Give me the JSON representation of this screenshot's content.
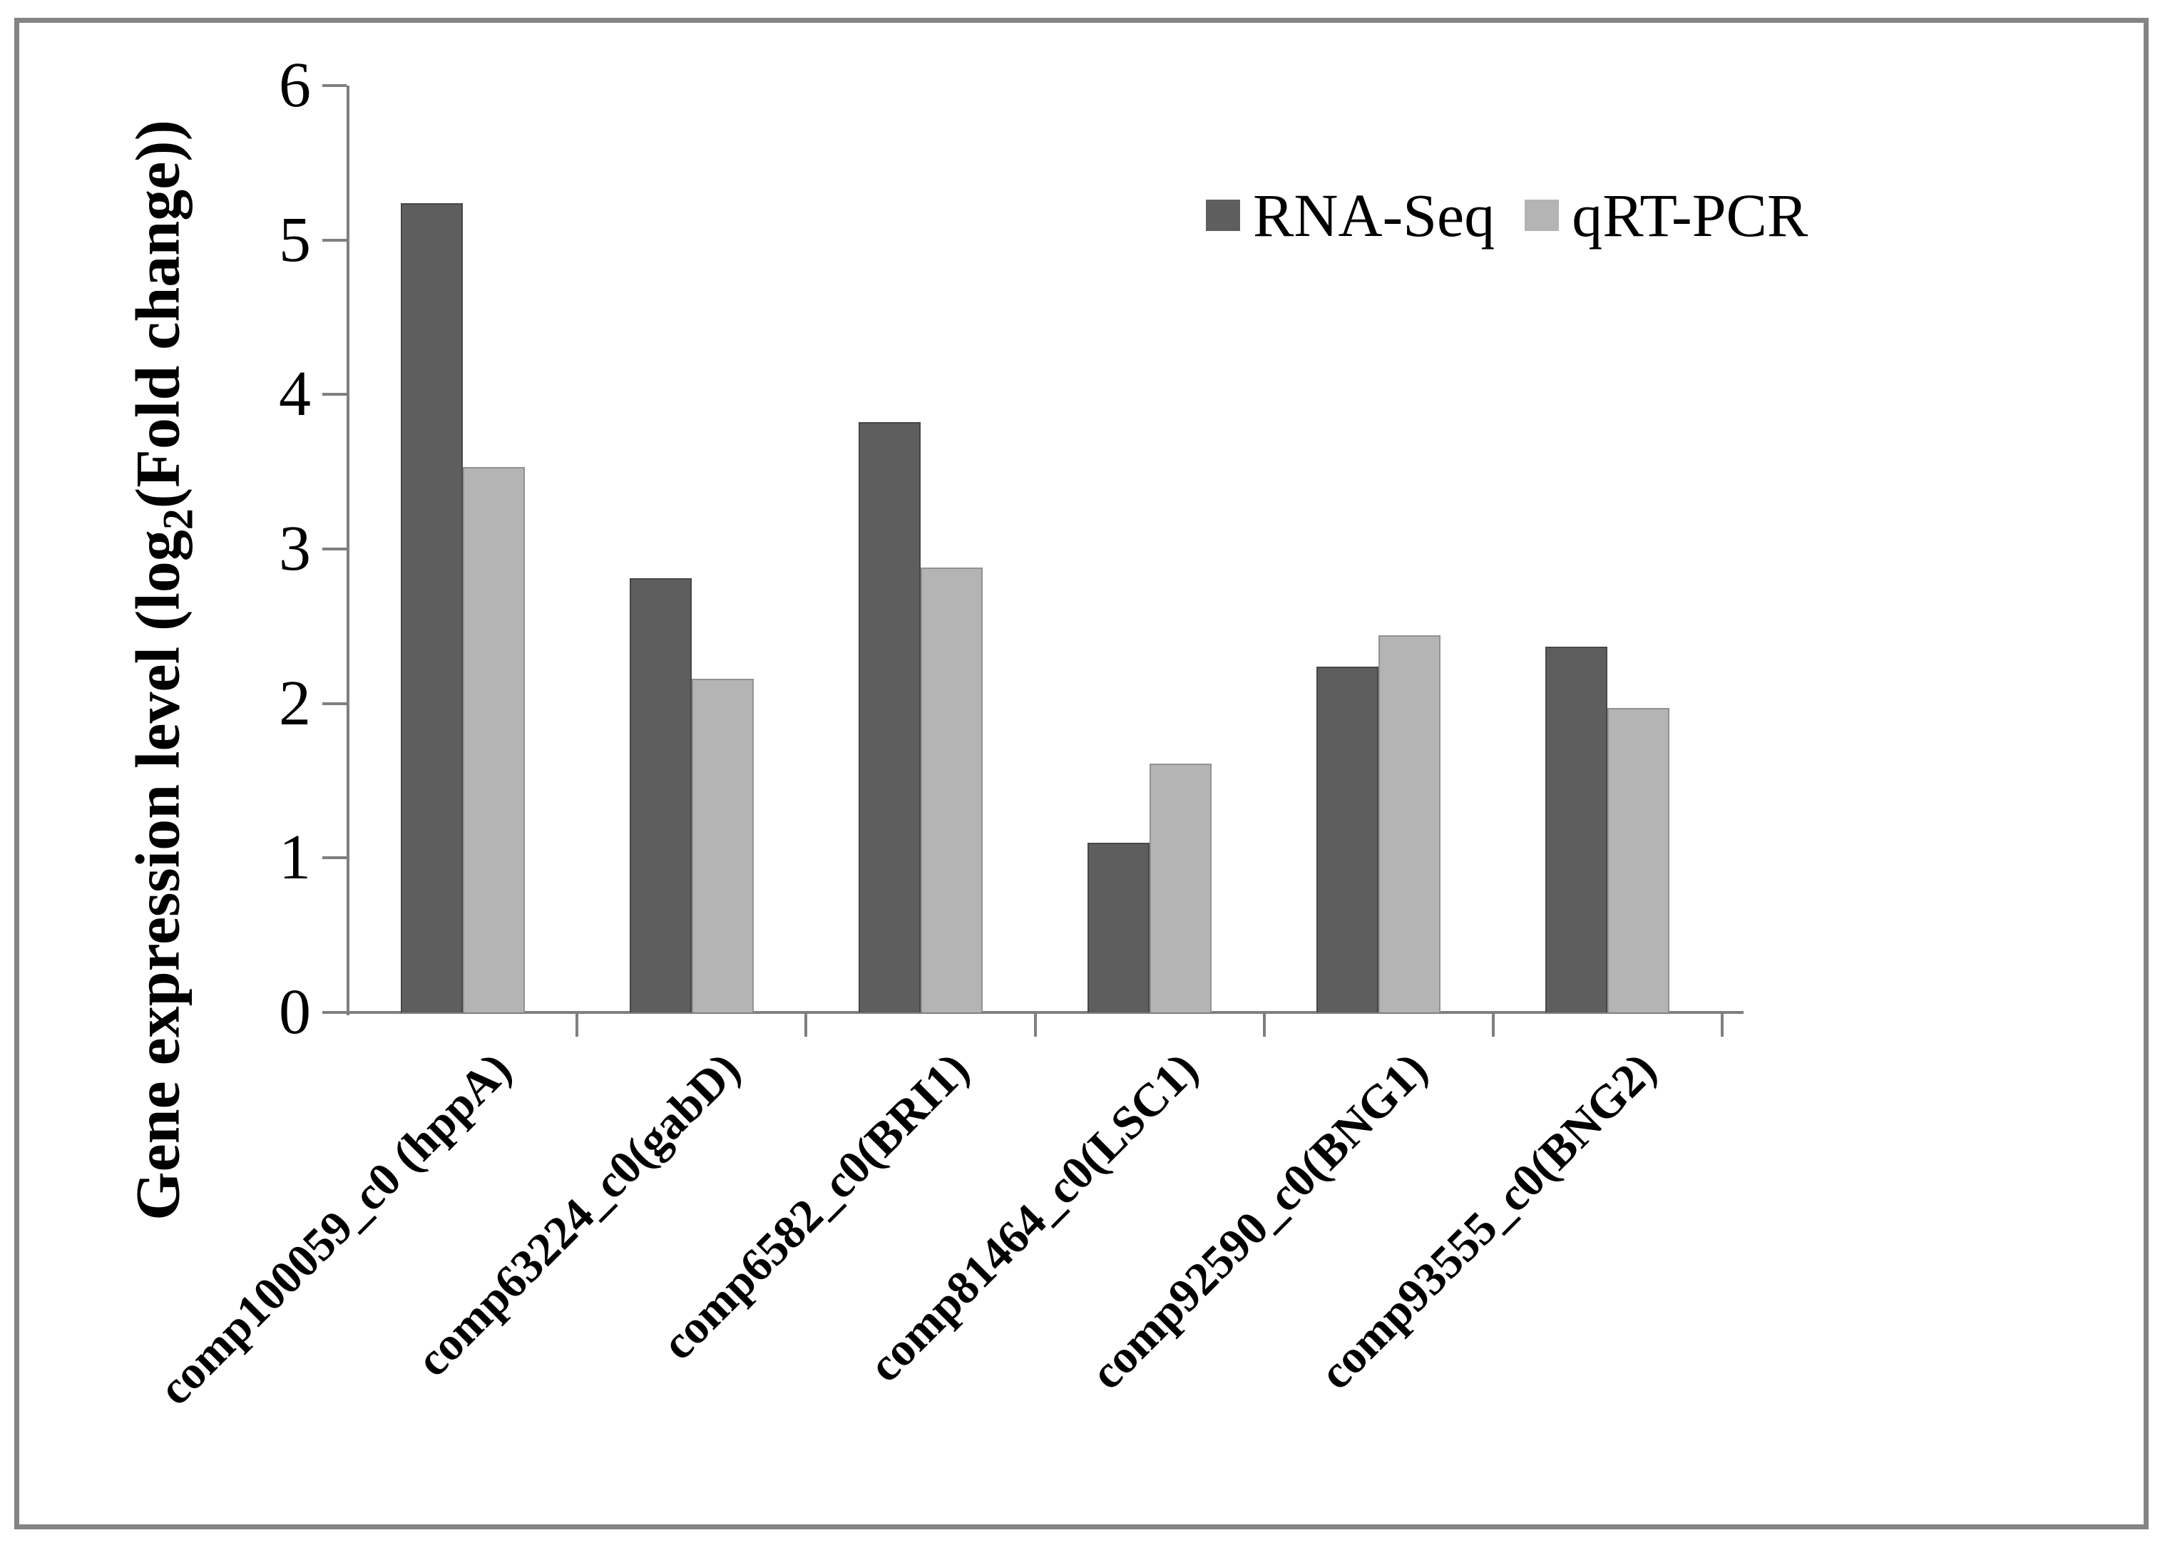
{
  "figure": {
    "background": "#ffffff",
    "frame_color": "#848484"
  },
  "y_axis": {
    "title_main": "Gene expression level (log",
    "title_sub": "2",
    "title_tail": "(Fold change))"
  },
  "legend": {
    "entries": [
      "RNA-Seq",
      "qRT-PCR"
    ]
  },
  "chart_data": {
    "type": "bar",
    "title": "",
    "xlabel": "",
    "ylabel": "Gene expression level (log2(Fold change))",
    "categories": [
      "comp100059_c0 (hppA)",
      "comp63224_c0(gabD)",
      "comp6582_c0(BRI1)",
      "comp81464_c0(LSC1)",
      "comp92590_c0(BNG1)",
      "comp93555_c0(BNG2)"
    ],
    "series": [
      {
        "name": "RNA-Seq",
        "color": "#5e5e5e",
        "border_color": "#474747",
        "values": [
          5.24,
          2.81,
          3.82,
          1.1,
          2.24,
          2.37
        ]
      },
      {
        "name": "qRT-PCR",
        "color": "#b4b4b4",
        "border_color": "#929292",
        "values": [
          3.53,
          2.16,
          2.88,
          1.61,
          2.44,
          1.97
        ]
      }
    ],
    "ylim": [
      0,
      6
    ],
    "yticks": [
      0,
      1,
      2,
      3,
      4,
      5,
      6
    ],
    "grid": false,
    "legend_position": "top-right-inside",
    "axis_color": "#7f7f7f",
    "bar_outline": true
  }
}
